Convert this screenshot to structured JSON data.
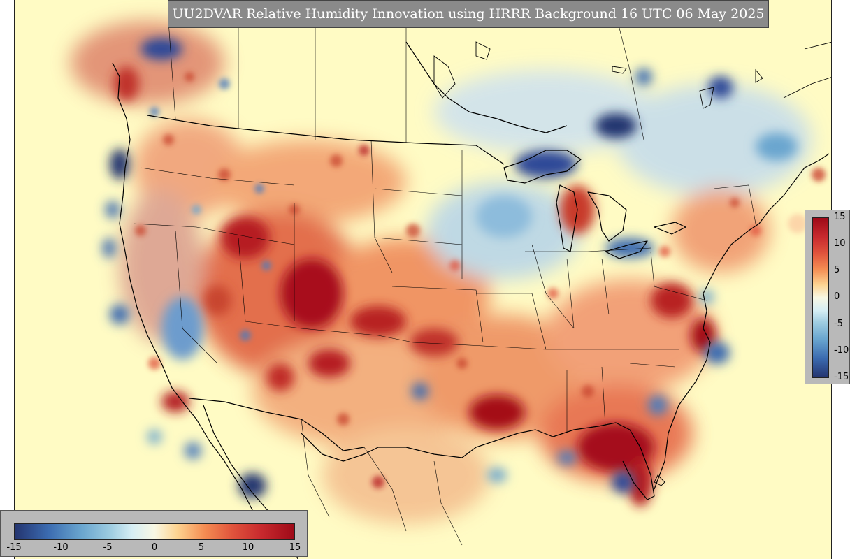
{
  "title": "UU2DVAR Relative Humidity Innovation using HRRR Background 16 UTC 06 May 2025",
  "colorbar": {
    "vertical_ticks": [
      "15",
      "10",
      "5",
      "0",
      "-5",
      "-10",
      "-15"
    ],
    "horizontal_ticks": [
      "-15",
      "-10",
      "-5",
      "0",
      "5",
      "10",
      "15"
    ]
  },
  "colors": {
    "background": "#fffbc4",
    "high_positive": "#9e0a18",
    "positive": "#e0533c",
    "neutral": "#f8f8e4",
    "negative": "#6aa6cf",
    "high_negative": "#24346f"
  }
}
